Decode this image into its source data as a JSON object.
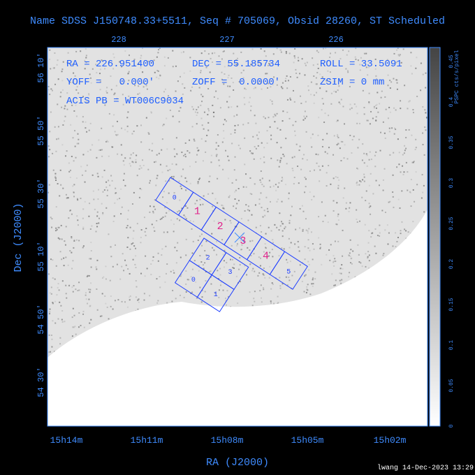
{
  "header": {
    "title": "Name SDSS J150748.33+5511, Seq # 705069, Obsid 28260, ST Scheduled"
  },
  "info": [
    "RA = 226.951400",
    "DEC = 55.185734",
    "ROLL = 33.5091",
    "YOFF =   0.000'",
    "ZOFF =  0.0000'",
    "ZSIM = 0 mm",
    "ACIS PB = WT006C9034"
  ],
  "top_ticks": [
    "228",
    "227",
    "226"
  ],
  "left_ticks": [
    "56 10'",
    "55 50'",
    "55 30'",
    "55 10'",
    "54 50'",
    "54 30'"
  ],
  "bottom_ticks": [
    "15h14m",
    "15h11m",
    "15h08m",
    "15h05m",
    "15h02m"
  ],
  "x_axis_title": "RA (J2000)",
  "y_axis_title": "Dec (J2000)",
  "colorbar": {
    "label": "PSPC cts/s/pixel",
    "ticks": [
      "0",
      "0.05",
      "0.1",
      "0.15",
      "0.2",
      "0.25",
      "0.3",
      "0.35",
      "0.4",
      "0.45"
    ]
  },
  "chips": {
    "s_array": [
      "0",
      "1",
      "2",
      "3",
      "4",
      "5"
    ],
    "i_array": [
      "2",
      "3",
      "0",
      "1"
    ]
  },
  "footer": "lwang 14-Dec-2023 13:29"
}
